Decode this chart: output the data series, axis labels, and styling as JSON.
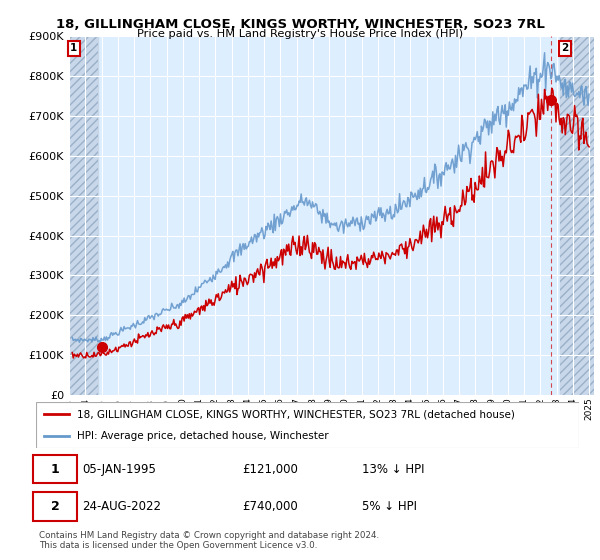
{
  "title_line1": "18, GILLINGHAM CLOSE, KINGS WORTHY, WINCHESTER, SO23 7RL",
  "title_line2": "Price paid vs. HM Land Registry's House Price Index (HPI)",
  "legend_line1": "18, GILLINGHAM CLOSE, KINGS WORTHY, WINCHESTER, SO23 7RL (detached house)",
  "legend_line2": "HPI: Average price, detached house, Winchester",
  "annotation1_date": "05-JAN-1995",
  "annotation1_price": "£121,000",
  "annotation1_hpi": "13% ↓ HPI",
  "annotation2_date": "24-AUG-2022",
  "annotation2_price": "£740,000",
  "annotation2_hpi": "5% ↓ HPI",
  "copyright_text": "Contains HM Land Registry data © Crown copyright and database right 2024.\nThis data is licensed under the Open Government Licence v3.0.",
  "price_color": "#cc0000",
  "hpi_color": "#6699cc",
  "annotation_box_color": "#cc0000",
  "plot_bg_color": "#ddeeff",
  "hatch_bg_color": "#c8d8ea",
  "grid_color": "#ffffff",
  "ylim": [
    0,
    900000
  ],
  "yticks": [
    0,
    100000,
    200000,
    300000,
    400000,
    500000,
    600000,
    700000,
    800000,
    900000
  ],
  "sale1_x": 1995.03,
  "sale1_y": 121000,
  "sale2_x": 2022.65,
  "sale2_y": 740000,
  "xlim_left": 1993.0,
  "xlim_right": 2025.3,
  "hatch_left_end": 1994.8,
  "hatch_right_start": 2023.2
}
